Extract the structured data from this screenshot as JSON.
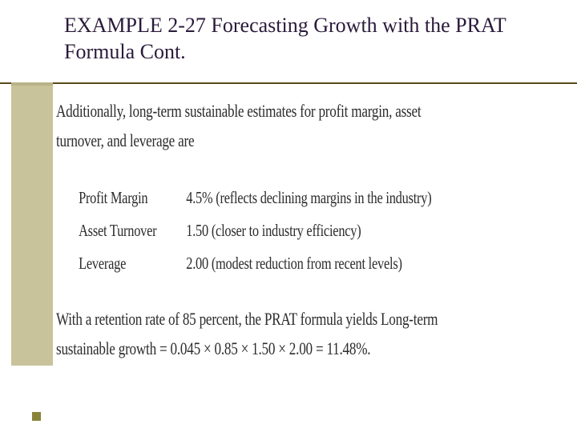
{
  "header": {
    "title": "EXAMPLE 2-27 Forecasting Growth with the PRAT Formula Cont.",
    "title_color": "#2a1a3a",
    "title_fontsize": 26
  },
  "theme": {
    "sidebar_color": "#c8c39a",
    "rule_color": "#5a4a1a",
    "bullet_color": "#8a833a",
    "background": "#ffffff"
  },
  "body": {
    "text_color": "#2c2c2c",
    "body_fontsize": 22,
    "intro": "Additionally, long-term sustainable estimates for profit margin, asset turnover, and leverage are",
    "rows": [
      {
        "label": "Profit Margin",
        "value": "4.5% (reflects declining margins in the industry)"
      },
      {
        "label": "Asset Turnover",
        "value": "1.50 (closer to industry efficiency)"
      },
      {
        "label": "Leverage",
        "value": "2.00 (modest reduction from recent levels)"
      }
    ],
    "outro": "With a retention rate of 85 percent, the PRAT formula yields Long-term sustainable growth = 0.045 × 0.85 × 1.50 × 2.00 = 11.48%."
  }
}
